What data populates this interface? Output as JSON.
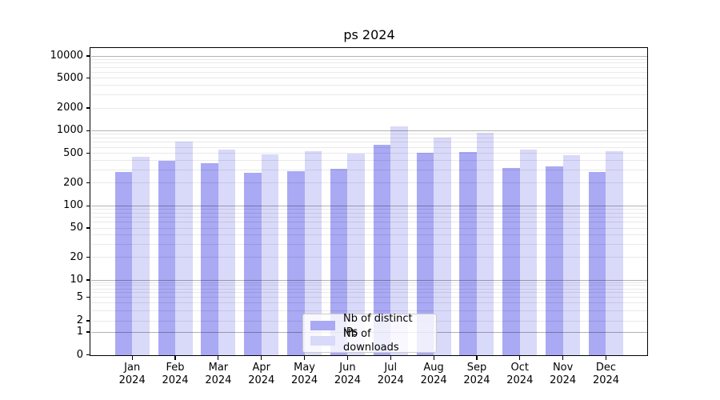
{
  "chart_data": {
    "type": "bar",
    "title": "ps 2024",
    "categories": [
      "Jan 2024",
      "Feb 2024",
      "Mar 2024",
      "Apr 2024",
      "May 2024",
      "Jun 2024",
      "Jul 2024",
      "Aug 2024",
      "Sep 2024",
      "Oct 2024",
      "Nov 2024",
      "Dec 2024"
    ],
    "series": [
      {
        "name": "Nb of distinct IPs",
        "color": "#a9a9f4",
        "values": [
          278,
          400,
          368,
          272,
          284,
          312,
          654,
          508,
          518,
          320,
          333,
          278
        ]
      },
      {
        "name": "Nb of downloads",
        "color": "#d9d9f9",
        "values": [
          443,
          720,
          565,
          480,
          538,
          494,
          1128,
          803,
          936,
          552,
          474,
          531
        ]
      }
    ],
    "y_axis": {
      "scale": "symlog",
      "tick_values": [
        0,
        1,
        2,
        5,
        10,
        20,
        50,
        100,
        200,
        500,
        1000,
        2000,
        5000,
        10000
      ],
      "tick_labels": [
        "0",
        "1",
        "2",
        "5",
        "10",
        "20",
        "50",
        "100",
        "200",
        "500",
        "1000",
        "2000",
        "5000",
        "10000"
      ],
      "major_grid_values": [
        1,
        10,
        100,
        1000,
        10000
      ],
      "minor_grid_decades": [
        1,
        10,
        100,
        1000
      ],
      "ylim": [
        0,
        13000
      ],
      "grid": true
    },
    "x_axis": {
      "tick_labels_two_lines": true
    },
    "legend_position": "lower center"
  },
  "colors": {
    "background": "#ffffff",
    "bar_distinct_ips": "#a9a9f4",
    "bar_downloads": "#d9d9f9",
    "spine": "#000000"
  }
}
